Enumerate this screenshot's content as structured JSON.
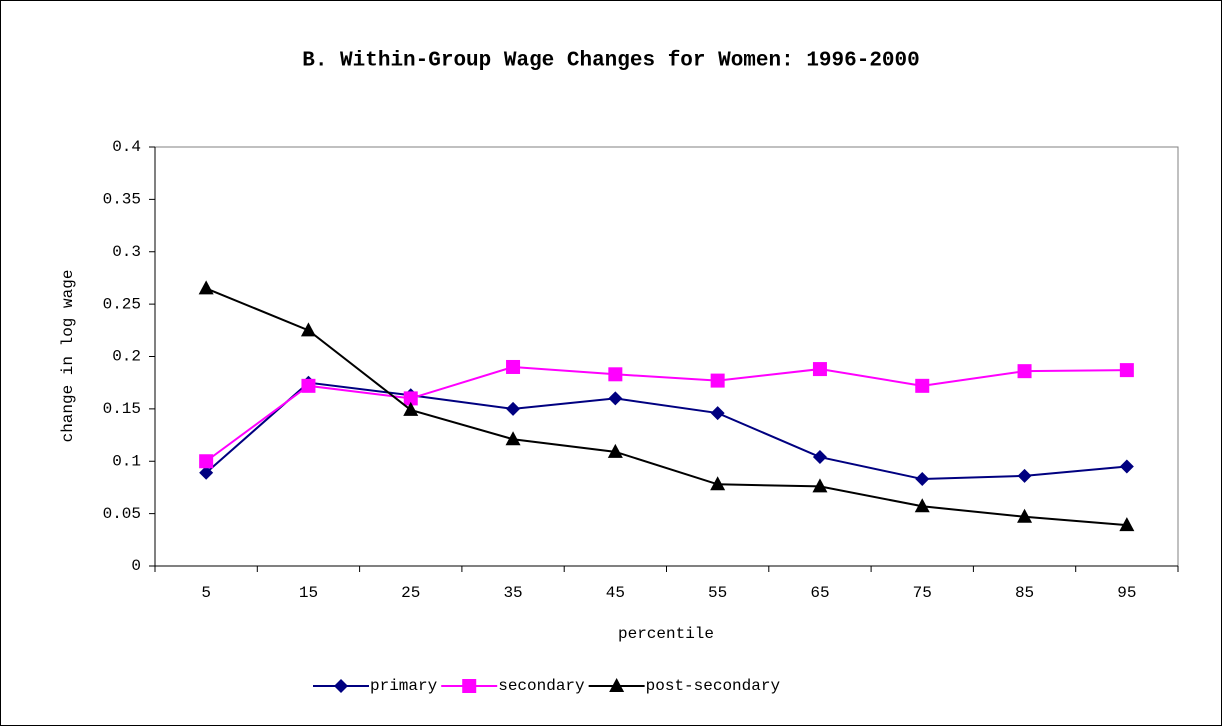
{
  "chart_data": {
    "type": "line",
    "title": "B. Within-Group Wage Changes for Women: 1996-2000",
    "x_label": "percentile",
    "y_label": "change in log wage",
    "categories": [
      "5",
      "15",
      "25",
      "35",
      "45",
      "55",
      "65",
      "75",
      "85",
      "95"
    ],
    "series": [
      {
        "name": "primary",
        "color": "#000080",
        "marker": "diamond",
        "values": [
          0.089,
          0.175,
          0.163,
          0.15,
          0.16,
          0.146,
          0.104,
          0.083,
          0.086,
          0.095
        ]
      },
      {
        "name": "secondary",
        "color": "#ff00ff",
        "marker": "square",
        "values": [
          0.1,
          0.172,
          0.16,
          0.19,
          0.183,
          0.177,
          0.188,
          0.172,
          0.186,
          0.187
        ]
      },
      {
        "name": "post-secondary",
        "color": "#000000",
        "marker": "triangle",
        "values": [
          0.265,
          0.225,
          0.149,
          0.121,
          0.109,
          0.078,
          0.076,
          0.057,
          0.047,
          0.039
        ]
      }
    ],
    "ylim": [
      0,
      0.4
    ],
    "yticks": [
      0,
      0.05,
      0.1,
      0.15,
      0.2,
      0.25,
      0.3,
      0.35,
      0.4
    ],
    "grid": false,
    "legend": "bottom"
  }
}
